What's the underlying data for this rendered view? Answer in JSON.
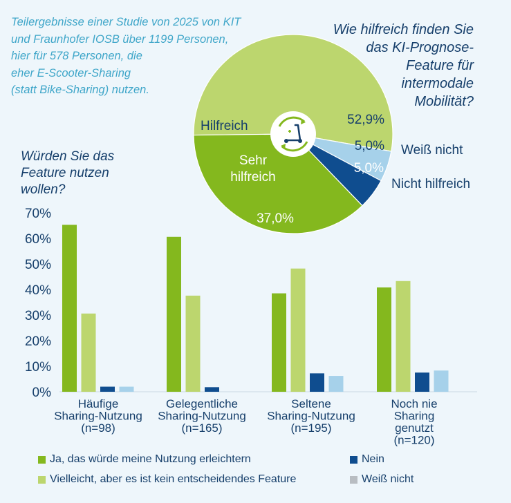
{
  "intro_text": [
    "Teilergebnisse einer Studie von 2025 von KIT",
    "und Fraunhofer IOSB über 1199 Personen,",
    "hier für 578 Personen, die",
    "eher E-Scooter-Sharing",
    "(statt Bike-Sharing) nutzen."
  ],
  "colors": {
    "dark_green": "#84b81e",
    "light_green": "#bcd66e",
    "dark_blue": "#0f4d8f",
    "light_blue": "#a6d1ea",
    "gray": "#b8bdc2",
    "text_navy": "#163f6b",
    "intro_cyan": "#3fa6c9"
  },
  "icon": "scooter-recycle-icon",
  "chart_data": [
    {
      "type": "pie",
      "title": [
        "Wie hilfreich finden Sie",
        "das KI-Prognose-",
        "Feature für",
        "intermodale",
        "Mobilität?"
      ],
      "slices": [
        {
          "label": "Hilfreich",
          "value": 52.9,
          "value_label": "52,9%",
          "color": "#bcd66e"
        },
        {
          "label": "Weiß nicht",
          "value": 5.0,
          "value_label": "5,0%",
          "color": "#a6d1ea"
        },
        {
          "label": "Nicht hilfreich",
          "value": 5.0,
          "value_label": "5,0%",
          "color": "#0f4d8f"
        },
        {
          "label": "Sehr hilfreich",
          "value": 37.0,
          "value_label": "37,0%",
          "color": "#84b81e"
        }
      ],
      "slice_label_lines": {
        "Sehr hilfreich": [
          "Sehr",
          "hilfreich"
        ]
      }
    },
    {
      "type": "bar",
      "title": [
        "Würden Sie das",
        "Feature nutzen",
        "wollen?"
      ],
      "y_ticks": [
        "70%",
        "60%",
        "50%",
        "40%",
        "30%",
        "20%",
        "10%",
        "0%"
      ],
      "ylim": [
        0,
        70
      ],
      "categories": [
        [
          "Häufige",
          "Sharing-Nutzung",
          "(n=98)"
        ],
        [
          "Gelegentliche",
          "Sharing-Nutzung",
          "(n=165)"
        ],
        [
          "Seltene",
          "Sharing-Nutzung",
          "(n=195)"
        ],
        [
          "Noch nie",
          "Sharing",
          "genutzt",
          "(n=120)"
        ]
      ],
      "series": [
        {
          "name": "Ja, das würde meine Nutzung erleichtern",
          "color": "#84b81e",
          "values": [
            65.3,
            60.6,
            38.5,
            40.8
          ]
        },
        {
          "name": "Vielleicht, aber es ist kein entscheidendes Feature",
          "color": "#bcd66e",
          "values": [
            30.6,
            37.6,
            48.2,
            43.3
          ]
        },
        {
          "name": "Nein",
          "color": "#0f4d8f",
          "values": [
            2.0,
            1.8,
            7.2,
            7.5
          ]
        },
        {
          "name": "Weiß nicht",
          "color": "#a6d1ea",
          "legend_color": "#b8bdc2",
          "values": [
            2.0,
            0.0,
            6.2,
            8.3
          ]
        }
      ]
    }
  ]
}
